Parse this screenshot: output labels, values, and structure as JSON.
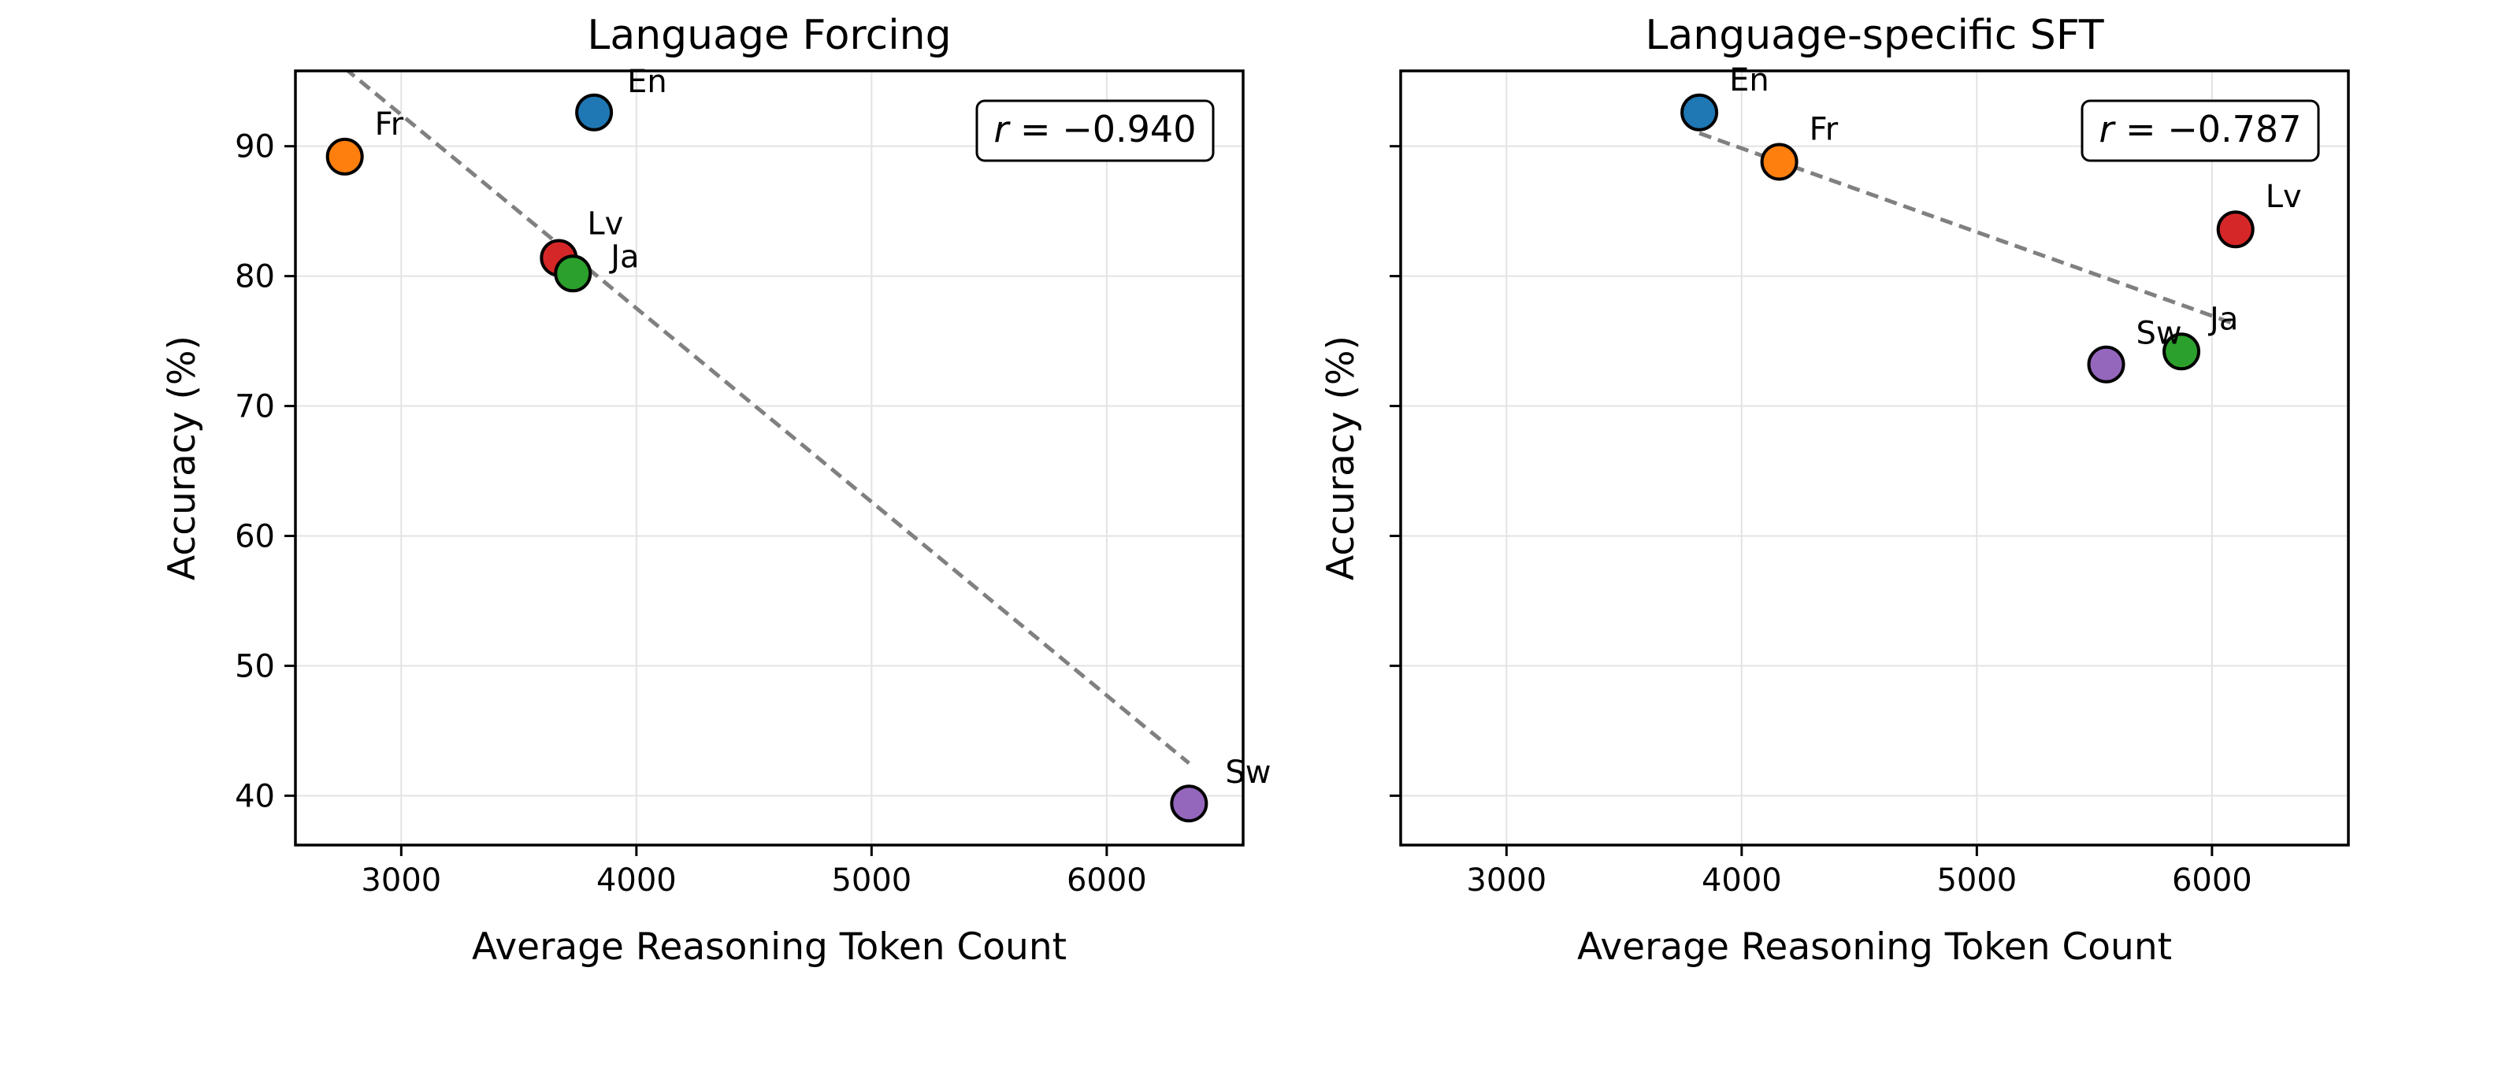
{
  "chart_data": [
    {
      "type": "scatter",
      "title": "Language Forcing",
      "xlabel": "Average Reasoning Token Count",
      "ylabel": "Accuracy (%)",
      "xlim": [
        2550,
        6580
      ],
      "ylim": [
        36.2,
        95.8
      ],
      "xticks": [
        3000,
        4000,
        5000,
        6000
      ],
      "yticks": [
        40,
        50,
        60,
        70,
        80,
        90
      ],
      "grid": true,
      "correlation_label": "r = −0.940",
      "points": [
        {
          "label": "En",
          "x": 3820,
          "y": 92.6,
          "color": "#1f77b4"
        },
        {
          "label": "Fr",
          "x": 2760,
          "y": 89.2,
          "color": "#ff7f0e"
        },
        {
          "label": "Lv",
          "x": 3670,
          "y": 81.4,
          "color": "#d62728"
        },
        {
          "label": "Ja",
          "x": 3730,
          "y": 80.2,
          "color": "#2ca02c"
        },
        {
          "label": "Sw",
          "x": 6350,
          "y": 39.4,
          "color": "#9467bd"
        }
      ],
      "trendline": {
        "x": [
          2760,
          6350
        ],
        "y": [
          96.0,
          42.5
        ],
        "style": "dashed",
        "color": "#808080"
      }
    },
    {
      "type": "scatter",
      "title": "Language-specific SFT",
      "xlabel": "Average Reasoning Token Count",
      "ylabel": "Accuracy (%)",
      "xlim": [
        2550,
        6580
      ],
      "ylim": [
        36.2,
        95.8
      ],
      "xticks": [
        3000,
        4000,
        5000,
        6000
      ],
      "yticks": [
        40,
        50,
        60,
        70,
        80,
        90
      ],
      "grid": true,
      "correlation_label": "r = −0.787",
      "points": [
        {
          "label": "En",
          "x": 3820,
          "y": 92.6,
          "color": "#1f77b4"
        },
        {
          "label": "Fr",
          "x": 4160,
          "y": 88.8,
          "color": "#ff7f0e"
        },
        {
          "label": "Lv",
          "x": 6100,
          "y": 83.6,
          "color": "#d62728"
        },
        {
          "label": "Sw",
          "x": 5550,
          "y": 73.2,
          "color": "#9467bd"
        },
        {
          "label": "Ja",
          "x": 5870,
          "y": 74.2,
          "color": "#2ca02c"
        }
      ],
      "trendline": {
        "x": [
          3820,
          6100
        ],
        "y": [
          91.0,
          76.3
        ],
        "style": "dashed",
        "color": "#808080"
      }
    }
  ]
}
